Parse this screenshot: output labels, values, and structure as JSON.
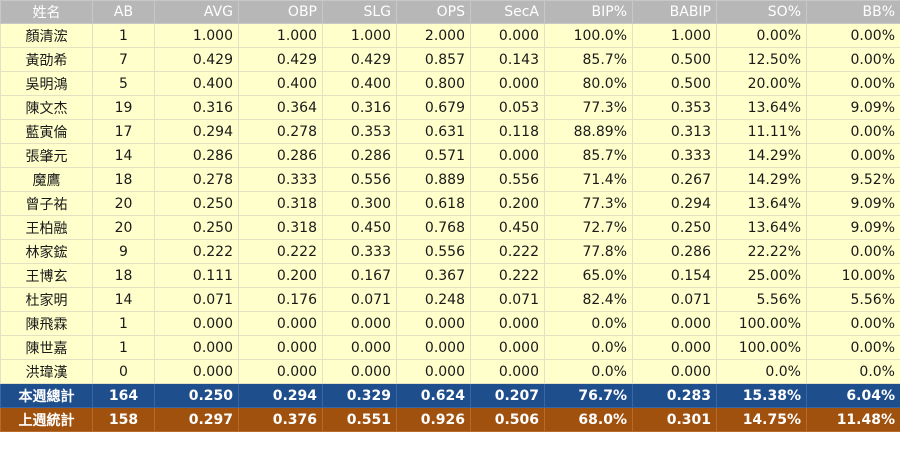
{
  "table": {
    "headers": [
      "姓名",
      "AB",
      "AVG",
      "OBP",
      "SLG",
      "OPS",
      "SecA",
      "BIP%",
      "BABIP",
      "SO%",
      "BB%"
    ],
    "rows": [
      [
        "顏清浤",
        "1",
        "1.000",
        "1.000",
        "1.000",
        "2.000",
        "0.000",
        "100.0%",
        "1.000",
        "0.00%",
        "0.00%"
      ],
      [
        "黃劭希",
        "7",
        "0.429",
        "0.429",
        "0.429",
        "0.857",
        "0.143",
        "85.7%",
        "0.500",
        "12.50%",
        "0.00%"
      ],
      [
        "吳明鴻",
        "5",
        "0.400",
        "0.400",
        "0.400",
        "0.800",
        "0.000",
        "80.0%",
        "0.500",
        "20.00%",
        "0.00%"
      ],
      [
        "陳文杰",
        "19",
        "0.316",
        "0.364",
        "0.316",
        "0.679",
        "0.053",
        "77.3%",
        "0.353",
        "13.64%",
        "9.09%"
      ],
      [
        "藍寅倫",
        "17",
        "0.294",
        "0.278",
        "0.353",
        "0.631",
        "0.118",
        "88.89%",
        "0.313",
        "11.11%",
        "0.00%"
      ],
      [
        "張肇元",
        "14",
        "0.286",
        "0.286",
        "0.286",
        "0.571",
        "0.000",
        "85.7%",
        "0.333",
        "14.29%",
        "0.00%"
      ],
      [
        "魔鷹",
        "18",
        "0.278",
        "0.333",
        "0.556",
        "0.889",
        "0.556",
        "71.4%",
        "0.267",
        "14.29%",
        "9.52%"
      ],
      [
        "曾子祐",
        "20",
        "0.250",
        "0.318",
        "0.300",
        "0.618",
        "0.200",
        "77.3%",
        "0.294",
        "13.64%",
        "9.09%"
      ],
      [
        "王柏融",
        "20",
        "0.250",
        "0.318",
        "0.450",
        "0.768",
        "0.450",
        "72.7%",
        "0.250",
        "13.64%",
        "9.09%"
      ],
      [
        "林家鋐",
        "9",
        "0.222",
        "0.222",
        "0.333",
        "0.556",
        "0.222",
        "77.8%",
        "0.286",
        "22.22%",
        "0.00%"
      ],
      [
        "王博玄",
        "18",
        "0.111",
        "0.200",
        "0.167",
        "0.367",
        "0.222",
        "65.0%",
        "0.154",
        "25.00%",
        "10.00%"
      ],
      [
        "杜家明",
        "14",
        "0.071",
        "0.176",
        "0.071",
        "0.248",
        "0.071",
        "82.4%",
        "0.071",
        "5.56%",
        "5.56%"
      ],
      [
        "陳飛霖",
        "1",
        "0.000",
        "0.000",
        "0.000",
        "0.000",
        "0.000",
        "0.0%",
        "0.000",
        "100.00%",
        "0.00%"
      ],
      [
        "陳世嘉",
        "1",
        "0.000",
        "0.000",
        "0.000",
        "0.000",
        "0.000",
        "0.0%",
        "0.000",
        "100.00%",
        "0.00%"
      ],
      [
        "洪瑋漢",
        "0",
        "0.000",
        "0.000",
        "0.000",
        "0.000",
        "0.000",
        "0.0%",
        "0.000",
        "0.0%",
        "0.0%"
      ]
    ],
    "week_total": [
      "本週總計",
      "164",
      "0.250",
      "0.294",
      "0.329",
      "0.624",
      "0.207",
      "76.7%",
      "0.283",
      "15.38%",
      "6.04%"
    ],
    "last_week_total": [
      "上週統計",
      "158",
      "0.297",
      "0.376",
      "0.551",
      "0.926",
      "0.506",
      "68.0%",
      "0.301",
      "14.75%",
      "11.48%"
    ]
  },
  "colors": {
    "header_bg": "#b7b7b7",
    "row_bg": "#ffffcc",
    "week_total_bg": "#1f4e8c",
    "last_week_bg": "#a0510e"
  }
}
